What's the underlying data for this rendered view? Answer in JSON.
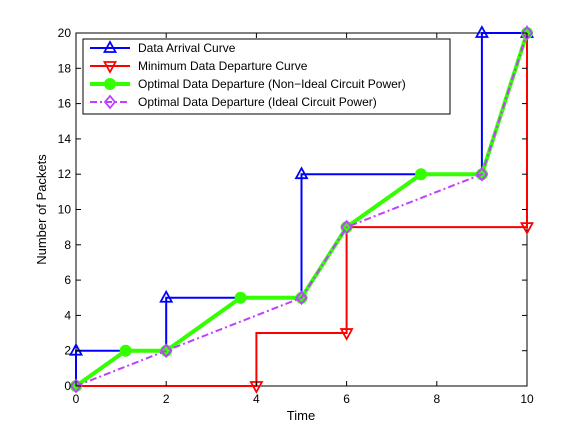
{
  "chart_data": {
    "type": "line",
    "xlabel": "Time",
    "ylabel": "Number of Packets",
    "xlim": [
      0,
      10
    ],
    "ylim": [
      0,
      20
    ],
    "xticks": [
      0,
      2,
      4,
      6,
      8,
      10
    ],
    "yticks": [
      0,
      2,
      4,
      6,
      8,
      10,
      12,
      14,
      16,
      18,
      20
    ],
    "grid": false,
    "legend_position": "top-left",
    "series": [
      {
        "name": "Data Arrival Curve",
        "color": "#0000ff",
        "marker": "triangle-up",
        "line_style": "solid",
        "points": [
          [
            0,
            0
          ],
          [
            0,
            2
          ],
          [
            2,
            2
          ],
          [
            2,
            5
          ],
          [
            5,
            5
          ],
          [
            5,
            12
          ],
          [
            9,
            12
          ],
          [
            9,
            20
          ],
          [
            10,
            20
          ]
        ],
        "marker_points": [
          [
            0,
            2
          ],
          [
            2,
            5
          ],
          [
            5,
            12
          ],
          [
            9,
            20
          ],
          [
            10,
            20
          ]
        ]
      },
      {
        "name": "Minimum Data Departure Curve",
        "color": "#ff0000",
        "marker": "triangle-down",
        "line_style": "solid",
        "points": [
          [
            0,
            0
          ],
          [
            4,
            0
          ],
          [
            4,
            3
          ],
          [
            6,
            3
          ],
          [
            6,
            9
          ],
          [
            10,
            9
          ],
          [
            10,
            20
          ]
        ],
        "marker_points": [
          [
            4,
            0
          ],
          [
            6,
            3
          ],
          [
            10,
            9
          ]
        ]
      },
      {
        "name": "Optimal Data Departure (Non−Ideal Circuit Power)",
        "color": "#33ff00",
        "marker": "circle",
        "line_style": "solid",
        "points": [
          [
            0,
            0
          ],
          [
            1.1,
            2
          ],
          [
            2,
            2
          ],
          [
            3.65,
            5
          ],
          [
            5,
            5
          ],
          [
            6,
            9
          ],
          [
            7.65,
            12
          ],
          [
            9,
            12
          ],
          [
            10,
            20
          ]
        ],
        "marker_points": [
          [
            0,
            0
          ],
          [
            1.1,
            2
          ],
          [
            2,
            2
          ],
          [
            3.65,
            5
          ],
          [
            5,
            5
          ],
          [
            6,
            9
          ],
          [
            7.65,
            12
          ],
          [
            9,
            12
          ],
          [
            10,
            20
          ]
        ]
      },
      {
        "name": "Optimal Data Departure (Ideal Circuit Power)",
        "color": "#bf40ff",
        "marker": "diamond",
        "line_style": "dashdot",
        "points": [
          [
            0,
            0
          ],
          [
            5,
            5
          ],
          [
            6,
            9
          ],
          [
            9,
            12
          ],
          [
            10,
            20
          ]
        ],
        "marker_points": [
          [
            0,
            0
          ],
          [
            2,
            2
          ],
          [
            5,
            5
          ],
          [
            6,
            9
          ],
          [
            9,
            12
          ],
          [
            10,
            20
          ]
        ]
      }
    ]
  }
}
